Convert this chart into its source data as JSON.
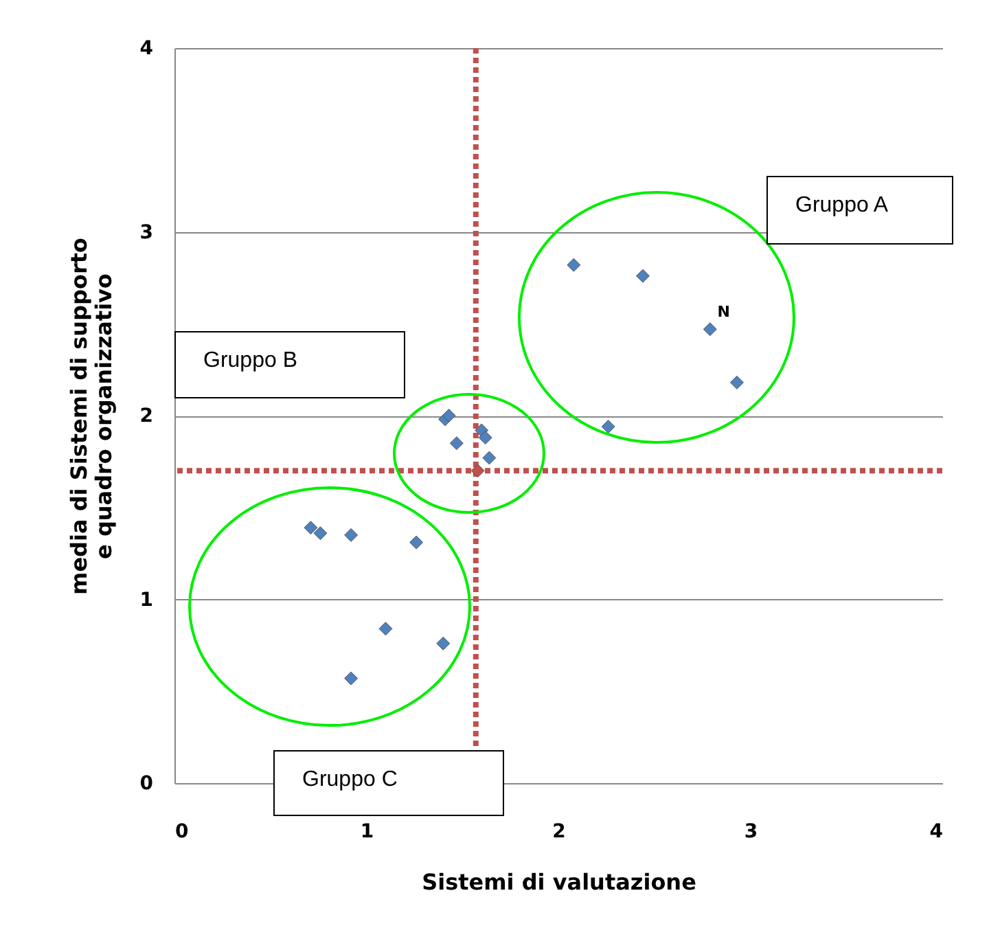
{
  "chart_data": {
    "type": "scatter",
    "xlabel": "Sistemi di valutazione",
    "ylabel": "media di Sistemi di supporto e quadro organizzativo",
    "marker": "diamond",
    "grid": "y",
    "xlim": [
      0,
      4
    ],
    "ylim": [
      0,
      4
    ],
    "xticks": [
      0,
      1,
      2,
      3,
      4
    ],
    "yticks": [
      0,
      1,
      2,
      3,
      4
    ],
    "series": [
      {
        "color": "#4f81bd",
        "x": [
          0.71,
          0.76,
          0.92,
          1.26,
          1.1,
          1.4,
          0.92,
          1.41,
          1.43,
          1.47,
          1.6,
          1.62,
          1.64,
          2.08,
          2.44,
          2.79,
          2.93,
          2.26
        ],
        "values": [
          1.39,
          1.36,
          1.35,
          1.31,
          0.84,
          0.76,
          0.57,
          1.98,
          2.0,
          1.85,
          1.92,
          1.88,
          1.77,
          2.82,
          2.76,
          2.47,
          2.18,
          1.94
        ]
      },
      {
        "color": "#c0504d",
        "x": [
          1.58
        ],
        "values": [
          1.7
        ]
      }
    ],
    "ref_lines": [
      {
        "axis": "x",
        "value": 1.57,
        "color": "#c0504d",
        "line_style": "dotted"
      },
      {
        "axis": "y",
        "value": 1.7,
        "color": "#c0504d",
        "line_style": "dotted"
      }
    ],
    "annotations": [
      {
        "text": "N",
        "x": 2.79,
        "y": 2.47
      },
      "Gruppo A",
      "Gruppo B",
      "Gruppo C"
    ]
  }
}
